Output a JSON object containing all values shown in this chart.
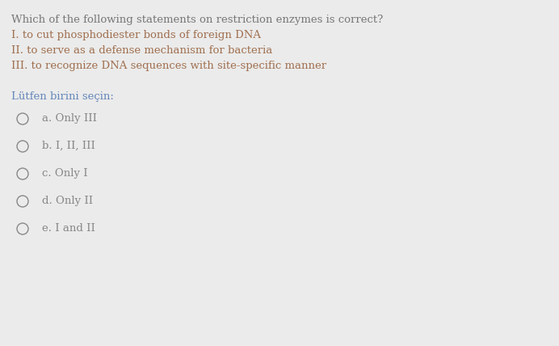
{
  "background_color": "#ebebeb",
  "question_color": "#777777",
  "statement_color": "#a07050",
  "lutfen_color": "#6688bb",
  "option_color": "#888888",
  "question_text": "Which of the following statements on restriction enzymes is correct?",
  "statements": [
    "I. to cut phosphodiester bonds of foreign DNA",
    "II. to serve as a defense mechanism for bacteria",
    "III. to recognize DNA sequences with site-specific manner"
  ],
  "lutfen_text": "Lütfen birini seçin:",
  "options": [
    "a. Only III",
    "b. I, II, III",
    "c. Only I",
    "d. Only II",
    "e. I and II"
  ],
  "font_size_question": 9.5,
  "font_size_statements": 9.5,
  "font_size_lutfen": 9.5,
  "font_size_options": 9.5,
  "fig_width": 6.92,
  "fig_height": 4.28,
  "dpi": 100
}
